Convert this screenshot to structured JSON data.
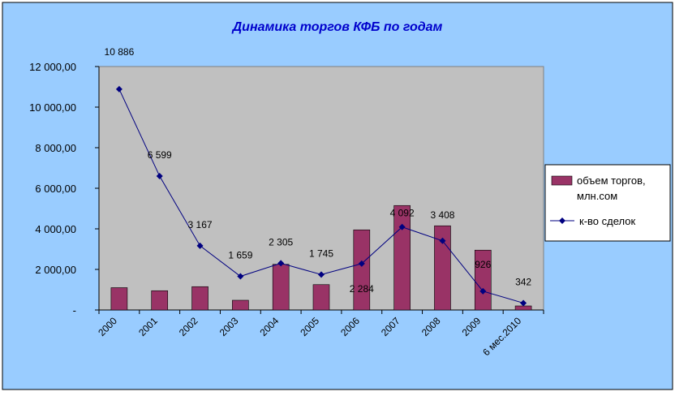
{
  "colors": {
    "chart_area": "#99CCFF",
    "plot_area": "#C0C0C0",
    "bar_fill": "#993366",
    "line": "#000080",
    "title": "#0000CC",
    "axis": "#000000",
    "legend_bg": "#FFFFFF"
  },
  "chart_data": {
    "type": "bar+line",
    "title": "Динамика торгов КФБ по годам",
    "categories": [
      "2000",
      "2001",
      "2002",
      "2003",
      "2004",
      "2005",
      "2006",
      "2007",
      "2008",
      "2009",
      "6 мес.2010"
    ],
    "y_ticks": [
      "-",
      "2 000,00",
      "4 000,00",
      "6 000,00",
      "8 000,00",
      "10 000,00",
      "12 000,00"
    ],
    "ylim": [
      0,
      12000
    ],
    "grid": false,
    "legend_position": "right",
    "series": [
      {
        "name": "объем торгов, млн.сом",
        "legend_lines": [
          "объем торгов,",
          "млн.сом"
        ],
        "type": "bar",
        "values": [
          1100,
          950,
          1150,
          480,
          2250,
          1250,
          3950,
          5150,
          4150,
          2950,
          200
        ]
      },
      {
        "name": "к-во сделок",
        "type": "line",
        "values": [
          10886,
          6599,
          3167,
          1659,
          2305,
          1745,
          2284,
          4092,
          3408,
          926,
          342
        ],
        "labels": [
          "10 886",
          "6 599",
          "3 167",
          "1 659",
          "2 305",
          "1 745",
          "2 284",
          "4 092",
          "3 408",
          "926",
          "342"
        ]
      }
    ]
  }
}
